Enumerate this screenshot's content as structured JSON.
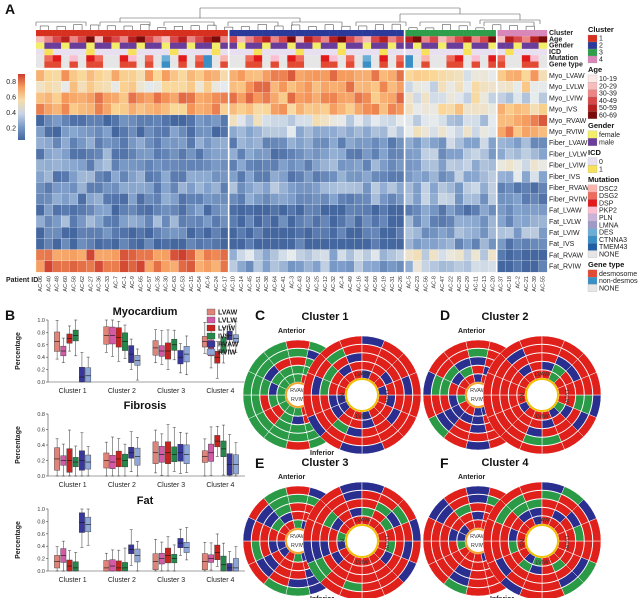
{
  "panel_labels": [
    "A",
    "B",
    "C",
    "D",
    "E",
    "F"
  ],
  "panel_a": {
    "annotation_rows": [
      "Cluster",
      "Age",
      "Gender",
      "ICD",
      "Mutation",
      "Gene type"
    ],
    "heatmap_rows": [
      "Myo_LVAW",
      "Myo_LVLW",
      "Myo_LVIW",
      "Myo_IVS",
      "Myo_RVAW",
      "Myo_RVIW",
      "Fiber_LVAW",
      "Fiber_LVLW",
      "Fiber_LVIW",
      "Fiber_IVS",
      "Fiber_RVAW",
      "Fiber_RVIW",
      "Fat_LVAW",
      "Fat_LVLW",
      "Fat_LVIW",
      "Fat_IVS",
      "Fat_RVAW",
      "Fat_RVIW"
    ],
    "colorbar_ticks": [
      "0.8",
      "0.6",
      "0.4",
      "0.2"
    ],
    "patient_label": "Patient ID",
    "patient_ids": [
      "AC-06",
      "AC-40",
      "AC-48",
      "AC-60",
      "AC-58",
      "AC-62",
      "AC-27",
      "AC-36",
      "AC-33",
      "AC-7",
      "AC-1",
      "AC-9",
      "AC-65",
      "AC-57",
      "AC-35",
      "AC-30",
      "AC-63",
      "AC-53",
      "AC-15",
      "AC-54",
      "AC-6",
      "AC-24",
      "AC-17",
      "AC-10",
      "AC-14",
      "AC-45",
      "AC-51",
      "AC-38",
      "AC-64",
      "AC-41",
      "AC-3",
      "AC-43",
      "AC-52",
      "AC-25",
      "AC-12",
      "AC-32",
      "AC-4",
      "AC-49",
      "AC-16",
      "AC-44",
      "AC-50",
      "AC-19",
      "AC-31",
      "AC-26",
      "AC-5",
      "AC-23",
      "AC-56",
      "AC-8",
      "AC-47",
      "AC-22",
      "AC-28",
      "AC-29",
      "AC-11",
      "AC-13",
      "AC-20",
      "AC-37",
      "AC-18",
      "AC-2",
      "AC-21",
      "AC-39",
      "AC-55"
    ],
    "legend": {
      "cluster": {
        "title": "Cluster",
        "items": [
          "1",
          "2",
          "3",
          "4"
        ],
        "colors": [
          "#d7301f",
          "#2b3a9a",
          "#2e9e4a",
          "#d986b8"
        ]
      },
      "age": {
        "title": "Age",
        "items": [
          "10-19",
          "20-29",
          "30-39",
          "40-49",
          "50-59",
          "60-69"
        ],
        "colors": [
          "#fde9e8",
          "#f7bcbc",
          "#ec8585",
          "#d94848",
          "#b8201f",
          "#7a0b0b"
        ]
      },
      "gender": {
        "title": "Gender",
        "items": [
          "female",
          "male"
        ],
        "colors": [
          "#f2ee6a",
          "#6a3d9a"
        ]
      },
      "icd": {
        "title": "ICD",
        "items": [
          "0",
          "1"
        ],
        "colors": [
          "#e8e0f0",
          "#f7e15b"
        ]
      },
      "mutation": {
        "title": "Mutation",
        "items": [
          "DSC2",
          "DSG2",
          "DSP",
          "PKP2",
          "PLN",
          "LMNA",
          "DES",
          "CTNNA3",
          "TMEM43",
          "NONE"
        ],
        "colors": [
          "#fbb4ae",
          "#f06a5c",
          "#e31a1c",
          "#fcbfd2",
          "#c8b3d9",
          "#9e9ac8",
          "#6baed6",
          "#3a8fc6",
          "#1f5fa8",
          "#e6e6e6"
        ]
      },
      "gene_type": {
        "title": "Gene type",
        "items": [
          "desmosome",
          "non-desmosome",
          "NONE"
        ],
        "colors": [
          "#e34a33",
          "#3a8fc6",
          "#e6e6e6"
        ]
      }
    }
  },
  "panel_b": {
    "legend": {
      "items": [
        "LVAW",
        "LVLW",
        "LVIW",
        "IVS",
        "RVAW",
        "RVIW"
      ],
      "colors": [
        "#e0847a",
        "#d35aa6",
        "#c8231e",
        "#24884a",
        "#38389c",
        "#8fa6d8"
      ]
    },
    "ylabel": "Percentage",
    "clusters": [
      "Cluster 1",
      "Cluster 2",
      "Cluster 3",
      "Cluster 4"
    ],
    "subplots": [
      {
        "title": "Myocardium",
        "yticks": [
          "0.0",
          "0.2",
          "0.4",
          "0.6",
          "0.8",
          "1.0"
        ],
        "medians": [
          [
            0.65,
            0.5,
            0.7,
            0.75,
            0.08,
            0.1
          ],
          [
            0.75,
            0.75,
            0.72,
            0.65,
            0.45,
            0.35
          ],
          [
            0.55,
            0.5,
            0.5,
            0.6,
            0.4,
            0.45
          ],
          [
            0.65,
            0.55,
            0.4,
            0.6,
            0.75,
            0.7
          ]
        ]
      },
      {
        "title": "Fibrosis",
        "yticks": [
          "0.0",
          "0.2",
          "0.4",
          "0.6",
          "0.8"
        ],
        "medians": [
          [
            0.22,
            0.2,
            0.2,
            0.18,
            0.2,
            0.18
          ],
          [
            0.2,
            0.18,
            0.22,
            0.2,
            0.3,
            0.25
          ],
          [
            0.3,
            0.28,
            0.3,
            0.28,
            0.3,
            0.28
          ],
          [
            0.25,
            0.3,
            0.45,
            0.35,
            0.15,
            0.15
          ]
        ]
      },
      {
        "title": "Fat",
        "yticks": [
          "0.0",
          "0.2",
          "0.4",
          "0.6",
          "0.8",
          "1.0"
        ],
        "medians": [
          [
            0.15,
            0.25,
            0.08,
            0.05,
            0.78,
            0.75
          ],
          [
            0.05,
            0.08,
            0.05,
            0.05,
            0.35,
            0.25
          ],
          [
            0.15,
            0.2,
            0.25,
            0.2,
            0.45,
            0.38
          ],
          [
            0.15,
            0.2,
            0.3,
            0.1,
            0.05,
            0.05
          ]
        ]
      }
    ]
  },
  "bullseyes": [
    {
      "label": "C",
      "title": "Cluster 1",
      "anterior": "Anterior",
      "inferior": "Inferior"
    },
    {
      "label": "D",
      "title": "Cluster 2",
      "anterior": "Anterior",
      "inferior": ""
    },
    {
      "label": "E",
      "title": "Cluster 3",
      "anterior": "Anterior",
      "inferior": "Inferior"
    },
    {
      "label": "F",
      "title": "Cluster 4",
      "anterior": "Anterior",
      "inferior": "Inferior"
    }
  ],
  "bullseye_segments": {
    "lv": [
      "LVAW",
      "LVLW",
      "LVIW",
      "IVS"
    ],
    "rv": [
      "RVAW",
      "RVIW"
    ]
  }
}
